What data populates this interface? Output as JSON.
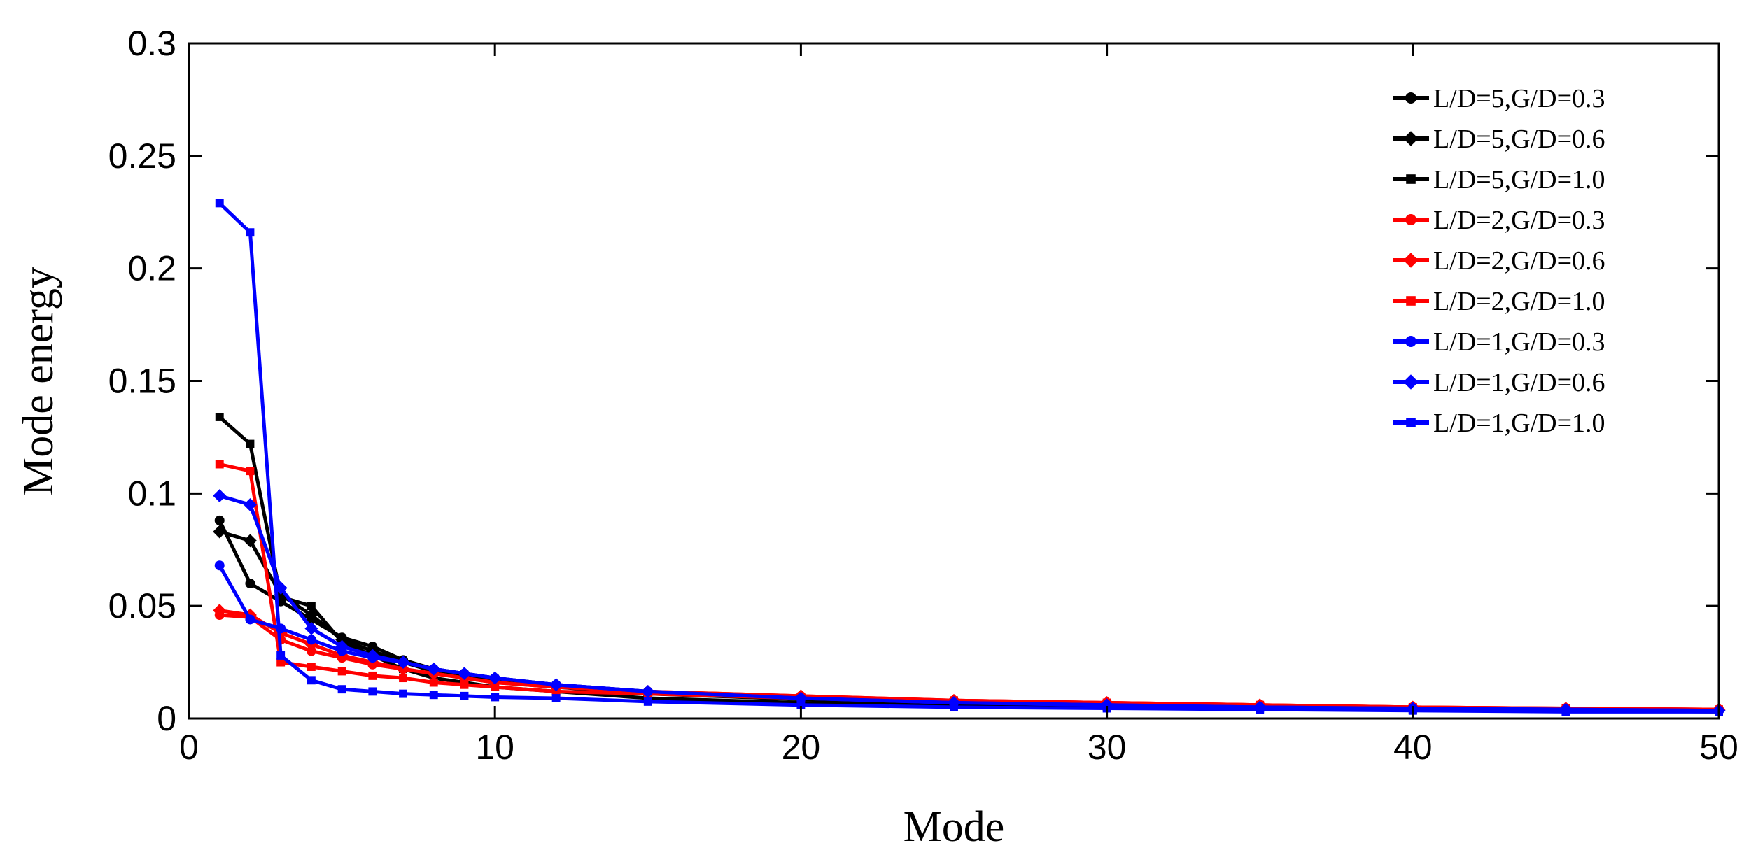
{
  "chart_data": {
    "type": "line",
    "xlabel": "Mode",
    "ylabel": "Mode energy",
    "xlim": [
      0,
      50
    ],
    "ylim": [
      0,
      0.3
    ],
    "xticks": [
      0,
      10,
      20,
      30,
      40,
      50
    ],
    "yticks": [
      0,
      0.05,
      0.1,
      0.15,
      0.2,
      0.25,
      0.3
    ],
    "ytick_labels": [
      "0",
      "0.05",
      "0.1",
      "0.15",
      "0.2",
      "0.25",
      "0.3"
    ],
    "grid": false,
    "legend_position": "top-right",
    "series": [
      {
        "name": "L/D=5,G/D=0.3",
        "color": "#000000",
        "marker": "circle",
        "x": [
          1,
          2,
          3,
          4,
          5,
          6,
          7,
          8,
          9,
          10,
          12,
          15,
          20,
          25,
          30,
          35,
          40,
          45,
          50
        ],
        "y": [
          0.088,
          0.06,
          0.052,
          0.044,
          0.036,
          0.032,
          0.026,
          0.022,
          0.02,
          0.018,
          0.015,
          0.012,
          0.009,
          0.007,
          0.006,
          0.005,
          0.0045,
          0.004,
          0.0035
        ]
      },
      {
        "name": "L/D=5,G/D=0.6",
        "color": "#000000",
        "marker": "diamond",
        "x": [
          1,
          2,
          3,
          4,
          5,
          6,
          7,
          8,
          9,
          10,
          12,
          15,
          20,
          25,
          30,
          35,
          40,
          45,
          50
        ],
        "y": [
          0.083,
          0.079,
          0.055,
          0.046,
          0.035,
          0.03,
          0.025,
          0.021,
          0.019,
          0.017,
          0.014,
          0.011,
          0.0085,
          0.007,
          0.006,
          0.005,
          0.0045,
          0.004,
          0.0035
        ]
      },
      {
        "name": "L/D=5,G/D=1.0",
        "color": "#000000",
        "marker": "square",
        "x": [
          1,
          2,
          3,
          4,
          5,
          6,
          7,
          8,
          9,
          10,
          12,
          15,
          20,
          25,
          30,
          35,
          40,
          45,
          50
        ],
        "y": [
          0.134,
          0.122,
          0.054,
          0.05,
          0.034,
          0.028,
          0.022,
          0.018,
          0.016,
          0.014,
          0.012,
          0.009,
          0.007,
          0.006,
          0.005,
          0.0045,
          0.004,
          0.0035,
          0.003
        ]
      },
      {
        "name": "L/D=2,G/D=0.3",
        "color": "#ff0000",
        "marker": "circle",
        "x": [
          1,
          2,
          3,
          4,
          5,
          6,
          7,
          8,
          9,
          10,
          12,
          15,
          20,
          25,
          30,
          35,
          40,
          45,
          50
        ],
        "y": [
          0.046,
          0.045,
          0.035,
          0.03,
          0.027,
          0.024,
          0.022,
          0.02,
          0.018,
          0.016,
          0.014,
          0.012,
          0.01,
          0.008,
          0.007,
          0.006,
          0.005,
          0.0045,
          0.004
        ]
      },
      {
        "name": "L/D=2,G/D=0.6",
        "color": "#ff0000",
        "marker": "diamond",
        "x": [
          1,
          2,
          3,
          4,
          5,
          6,
          7,
          8,
          9,
          10,
          12,
          15,
          20,
          25,
          30,
          35,
          40,
          45,
          50
        ],
        "y": [
          0.048,
          0.046,
          0.038,
          0.033,
          0.028,
          0.025,
          0.022,
          0.02,
          0.018,
          0.016,
          0.014,
          0.012,
          0.01,
          0.008,
          0.007,
          0.006,
          0.005,
          0.0045,
          0.004
        ]
      },
      {
        "name": "L/D=2,G/D=1.0",
        "color": "#ff0000",
        "marker": "square",
        "x": [
          1,
          2,
          3,
          4,
          5,
          6,
          7,
          8,
          9,
          10,
          12,
          15,
          20,
          25,
          30,
          35,
          40,
          45,
          50
        ],
        "y": [
          0.113,
          0.11,
          0.025,
          0.023,
          0.021,
          0.019,
          0.018,
          0.016,
          0.015,
          0.014,
          0.012,
          0.011,
          0.009,
          0.008,
          0.007,
          0.006,
          0.005,
          0.0045,
          0.004
        ]
      },
      {
        "name": "L/D=1,G/D=0.3",
        "color": "#0000ff",
        "marker": "circle",
        "x": [
          1,
          2,
          3,
          4,
          5,
          6,
          7,
          8,
          9,
          10,
          12,
          15,
          20,
          25,
          30,
          35,
          40,
          45,
          50
        ],
        "y": [
          0.068,
          0.044,
          0.04,
          0.035,
          0.03,
          0.027,
          0.025,
          0.022,
          0.02,
          0.018,
          0.015,
          0.012,
          0.009,
          0.007,
          0.006,
          0.005,
          0.0045,
          0.004,
          0.0035
        ]
      },
      {
        "name": "L/D=1,G/D=0.6",
        "color": "#0000ff",
        "marker": "diamond",
        "x": [
          1,
          2,
          3,
          4,
          5,
          6,
          7,
          8,
          9,
          10,
          12,
          15,
          20,
          25,
          30,
          35,
          40,
          45,
          50
        ],
        "y": [
          0.099,
          0.095,
          0.058,
          0.04,
          0.032,
          0.028,
          0.025,
          0.022,
          0.02,
          0.018,
          0.015,
          0.012,
          0.009,
          0.007,
          0.006,
          0.005,
          0.0045,
          0.004,
          0.0035
        ]
      },
      {
        "name": "L/D=1,G/D=1.0",
        "color": "#0000ff",
        "marker": "square",
        "x": [
          1,
          2,
          3,
          4,
          5,
          6,
          7,
          8,
          9,
          10,
          12,
          15,
          20,
          25,
          30,
          35,
          40,
          45,
          50
        ],
        "y": [
          0.229,
          0.216,
          0.028,
          0.017,
          0.013,
          0.012,
          0.011,
          0.0105,
          0.01,
          0.0095,
          0.009,
          0.0075,
          0.006,
          0.005,
          0.0045,
          0.004,
          0.0035,
          0.003,
          0.003
        ]
      }
    ]
  }
}
